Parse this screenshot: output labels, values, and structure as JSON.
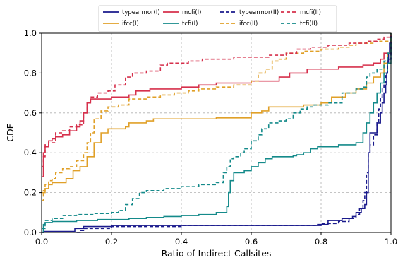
{
  "chart_data": {
    "type": "line",
    "title": "",
    "xlabel": "Ratio of Indirect Callsites",
    "ylabel": "CDF",
    "xlim": [
      0.0,
      1.0
    ],
    "ylim": [
      0.0,
      1.0
    ],
    "x_ticks": [
      "0.0",
      "0.2",
      "0.4",
      "0.6",
      "0.8",
      "1.0"
    ],
    "y_ticks": [
      "0.0",
      "0.2",
      "0.4",
      "0.6",
      "0.8",
      "1.0"
    ],
    "grid": true,
    "legend_position": "top-center",
    "series": [
      {
        "name": "typearmor(I)",
        "color": "#1a1a8c",
        "dashed": false,
        "step": true,
        "points": [
          [
            0,
            0
          ],
          [
            0.005,
            0.005
          ],
          [
            0.09,
            0.005
          ],
          [
            0.095,
            0.02
          ],
          [
            0.12,
            0.03
          ],
          [
            0.2,
            0.035
          ],
          [
            0.4,
            0.035
          ],
          [
            0.6,
            0.035
          ],
          [
            0.79,
            0.04
          ],
          [
            0.82,
            0.06
          ],
          [
            0.86,
            0.07
          ],
          [
            0.89,
            0.08
          ],
          [
            0.9,
            0.1
          ],
          [
            0.915,
            0.12
          ],
          [
            0.925,
            0.14
          ],
          [
            0.93,
            0.2
          ],
          [
            0.935,
            0.4
          ],
          [
            0.94,
            0.5
          ],
          [
            0.96,
            0.55
          ],
          [
            0.97,
            0.6
          ],
          [
            0.975,
            0.65
          ],
          [
            0.98,
            0.7
          ],
          [
            0.985,
            0.74
          ],
          [
            0.988,
            0.8
          ],
          [
            0.99,
            0.85
          ],
          [
            0.993,
            0.9
          ],
          [
            0.996,
            0.95
          ],
          [
            1.0,
            1.0
          ]
        ]
      },
      {
        "name": "ifcc(I)",
        "color": "#e0a028",
        "dashed": false,
        "step": true,
        "points": [
          [
            0,
            0.2
          ],
          [
            0.005,
            0.2
          ],
          [
            0.01,
            0.22
          ],
          [
            0.02,
            0.24
          ],
          [
            0.03,
            0.25
          ],
          [
            0.06,
            0.25
          ],
          [
            0.07,
            0.27
          ],
          [
            0.09,
            0.31
          ],
          [
            0.11,
            0.33
          ],
          [
            0.13,
            0.38
          ],
          [
            0.15,
            0.45
          ],
          [
            0.17,
            0.5
          ],
          [
            0.19,
            0.52
          ],
          [
            0.24,
            0.53
          ],
          [
            0.25,
            0.55
          ],
          [
            0.3,
            0.56
          ],
          [
            0.32,
            0.57
          ],
          [
            0.5,
            0.575
          ],
          [
            0.6,
            0.6
          ],
          [
            0.63,
            0.61
          ],
          [
            0.65,
            0.63
          ],
          [
            0.75,
            0.64
          ],
          [
            0.8,
            0.65
          ],
          [
            0.83,
            0.68
          ],
          [
            0.87,
            0.7
          ],
          [
            0.9,
            0.72
          ],
          [
            0.93,
            0.75
          ],
          [
            0.95,
            0.78
          ],
          [
            0.97,
            0.8
          ],
          [
            0.98,
            0.85
          ],
          [
            0.99,
            0.9
          ],
          [
            1.0,
            1.0
          ]
        ]
      },
      {
        "name": "mcfi(I)",
        "color": "#d6304c",
        "dashed": false,
        "step": true,
        "points": [
          [
            0,
            0.28
          ],
          [
            0.005,
            0.4
          ],
          [
            0.01,
            0.43
          ],
          [
            0.02,
            0.46
          ],
          [
            0.03,
            0.47
          ],
          [
            0.04,
            0.48
          ],
          [
            0.06,
            0.49
          ],
          [
            0.08,
            0.51
          ],
          [
            0.1,
            0.53
          ],
          [
            0.11,
            0.56
          ],
          [
            0.12,
            0.6
          ],
          [
            0.13,
            0.65
          ],
          [
            0.14,
            0.67
          ],
          [
            0.2,
            0.68
          ],
          [
            0.25,
            0.69
          ],
          [
            0.27,
            0.71
          ],
          [
            0.31,
            0.72
          ],
          [
            0.4,
            0.73
          ],
          [
            0.45,
            0.74
          ],
          [
            0.5,
            0.75
          ],
          [
            0.6,
            0.76
          ],
          [
            0.68,
            0.78
          ],
          [
            0.71,
            0.8
          ],
          [
            0.76,
            0.82
          ],
          [
            0.85,
            0.83
          ],
          [
            0.92,
            0.84
          ],
          [
            0.95,
            0.85
          ],
          [
            0.97,
            0.87
          ],
          [
            0.98,
            0.9
          ],
          [
            1.0,
            0.99
          ]
        ]
      },
      {
        "name": "tcfi(I)",
        "color": "#148a8a",
        "dashed": false,
        "step": true,
        "points": [
          [
            0,
            0
          ],
          [
            0.005,
            0.04
          ],
          [
            0.01,
            0.05
          ],
          [
            0.03,
            0.055
          ],
          [
            0.1,
            0.06
          ],
          [
            0.16,
            0.065
          ],
          [
            0.25,
            0.07
          ],
          [
            0.3,
            0.075
          ],
          [
            0.35,
            0.08
          ],
          [
            0.4,
            0.085
          ],
          [
            0.45,
            0.09
          ],
          [
            0.5,
            0.1
          ],
          [
            0.53,
            0.13
          ],
          [
            0.535,
            0.2
          ],
          [
            0.54,
            0.26
          ],
          [
            0.55,
            0.3
          ],
          [
            0.58,
            0.31
          ],
          [
            0.6,
            0.33
          ],
          [
            0.62,
            0.35
          ],
          [
            0.64,
            0.37
          ],
          [
            0.66,
            0.38
          ],
          [
            0.72,
            0.385
          ],
          [
            0.73,
            0.39
          ],
          [
            0.75,
            0.4
          ],
          [
            0.77,
            0.42
          ],
          [
            0.79,
            0.43
          ],
          [
            0.85,
            0.44
          ],
          [
            0.9,
            0.45
          ],
          [
            0.92,
            0.5
          ],
          [
            0.93,
            0.55
          ],
          [
            0.94,
            0.6
          ],
          [
            0.95,
            0.65
          ],
          [
            0.96,
            0.7
          ],
          [
            0.97,
            0.75
          ],
          [
            0.98,
            0.8
          ],
          [
            0.99,
            0.85
          ],
          [
            1.0,
            0.98
          ]
        ]
      },
      {
        "name": "typearmor(II)",
        "color": "#1a1a8c",
        "dashed": true,
        "step": true,
        "points": [
          [
            0.1,
            0
          ],
          [
            0.11,
            0.01
          ],
          [
            0.12,
            0.02
          ],
          [
            0.2,
            0.03
          ],
          [
            0.4,
            0.035
          ],
          [
            0.7,
            0.035
          ],
          [
            0.8,
            0.045
          ],
          [
            0.85,
            0.055
          ],
          [
            0.88,
            0.07
          ],
          [
            0.9,
            0.09
          ],
          [
            0.91,
            0.12
          ],
          [
            0.92,
            0.16
          ],
          [
            0.925,
            0.2
          ],
          [
            0.93,
            0.3
          ],
          [
            0.935,
            0.4
          ],
          [
            0.94,
            0.44
          ],
          [
            0.95,
            0.49
          ],
          [
            0.96,
            0.55
          ],
          [
            0.965,
            0.62
          ],
          [
            0.97,
            0.68
          ],
          [
            0.975,
            0.72
          ],
          [
            0.98,
            0.75
          ],
          [
            0.985,
            0.8
          ],
          [
            0.99,
            0.87
          ],
          [
            1.0,
            1.0
          ]
        ]
      },
      {
        "name": "ifcc(II)",
        "color": "#e0a028",
        "dashed": true,
        "step": true,
        "points": [
          [
            0,
            0.16
          ],
          [
            0.005,
            0.21
          ],
          [
            0.01,
            0.24
          ],
          [
            0.02,
            0.26
          ],
          [
            0.03,
            0.27
          ],
          [
            0.04,
            0.3
          ],
          [
            0.06,
            0.32
          ],
          [
            0.08,
            0.33
          ],
          [
            0.1,
            0.36
          ],
          [
            0.12,
            0.4
          ],
          [
            0.13,
            0.45
          ],
          [
            0.14,
            0.5
          ],
          [
            0.15,
            0.57
          ],
          [
            0.17,
            0.61
          ],
          [
            0.19,
            0.63
          ],
          [
            0.22,
            0.64
          ],
          [
            0.25,
            0.67
          ],
          [
            0.3,
            0.68
          ],
          [
            0.34,
            0.69
          ],
          [
            0.38,
            0.7
          ],
          [
            0.42,
            0.71
          ],
          [
            0.45,
            0.72
          ],
          [
            0.5,
            0.73
          ],
          [
            0.55,
            0.74
          ],
          [
            0.6,
            0.76
          ],
          [
            0.62,
            0.8
          ],
          [
            0.64,
            0.82
          ],
          [
            0.66,
            0.86
          ],
          [
            0.68,
            0.87
          ],
          [
            0.7,
            0.9
          ],
          [
            0.75,
            0.91
          ],
          [
            0.8,
            0.92
          ],
          [
            0.85,
            0.93
          ],
          [
            0.88,
            0.94
          ],
          [
            0.9,
            0.95
          ],
          [
            0.95,
            0.96
          ],
          [
            1.0,
            1.0
          ]
        ]
      },
      {
        "name": "mcfi(II)",
        "color": "#d6304c",
        "dashed": true,
        "step": true,
        "points": [
          [
            0,
            0.33
          ],
          [
            0.005,
            0.38
          ],
          [
            0.01,
            0.44
          ],
          [
            0.02,
            0.45
          ],
          [
            0.04,
            0.5
          ],
          [
            0.06,
            0.51
          ],
          [
            0.08,
            0.53
          ],
          [
            0.1,
            0.54
          ],
          [
            0.12,
            0.6
          ],
          [
            0.13,
            0.65
          ],
          [
            0.14,
            0.68
          ],
          [
            0.16,
            0.7
          ],
          [
            0.19,
            0.71
          ],
          [
            0.21,
            0.74
          ],
          [
            0.24,
            0.78
          ],
          [
            0.26,
            0.8
          ],
          [
            0.3,
            0.81
          ],
          [
            0.34,
            0.84
          ],
          [
            0.36,
            0.85
          ],
          [
            0.42,
            0.86
          ],
          [
            0.46,
            0.87
          ],
          [
            0.55,
            0.88
          ],
          [
            0.65,
            0.89
          ],
          [
            0.7,
            0.9
          ],
          [
            0.73,
            0.92
          ],
          [
            0.77,
            0.93
          ],
          [
            0.82,
            0.94
          ],
          [
            0.88,
            0.95
          ],
          [
            0.93,
            0.96
          ],
          [
            0.96,
            0.97
          ],
          [
            0.98,
            0.98
          ],
          [
            1.0,
            1.0
          ]
        ]
      },
      {
        "name": "tcfi(II)",
        "color": "#148a8a",
        "dashed": true,
        "step": true,
        "points": [
          [
            0,
            0.02
          ],
          [
            0.01,
            0.06
          ],
          [
            0.03,
            0.07
          ],
          [
            0.06,
            0.085
          ],
          [
            0.1,
            0.09
          ],
          [
            0.15,
            0.095
          ],
          [
            0.2,
            0.1
          ],
          [
            0.22,
            0.11
          ],
          [
            0.24,
            0.14
          ],
          [
            0.26,
            0.17
          ],
          [
            0.28,
            0.2
          ],
          [
            0.3,
            0.21
          ],
          [
            0.35,
            0.22
          ],
          [
            0.4,
            0.23
          ],
          [
            0.45,
            0.24
          ],
          [
            0.5,
            0.25
          ],
          [
            0.52,
            0.3
          ],
          [
            0.53,
            0.33
          ],
          [
            0.54,
            0.37
          ],
          [
            0.55,
            0.38
          ],
          [
            0.57,
            0.4
          ],
          [
            0.58,
            0.42
          ],
          [
            0.6,
            0.46
          ],
          [
            0.62,
            0.49
          ],
          [
            0.63,
            0.52
          ],
          [
            0.65,
            0.55
          ],
          [
            0.68,
            0.56
          ],
          [
            0.7,
            0.57
          ],
          [
            0.72,
            0.6
          ],
          [
            0.74,
            0.62
          ],
          [
            0.76,
            0.63
          ],
          [
            0.78,
            0.64
          ],
          [
            0.82,
            0.65
          ],
          [
            0.86,
            0.7
          ],
          [
            0.9,
            0.72
          ],
          [
            0.92,
            0.73
          ],
          [
            0.93,
            0.78
          ],
          [
            0.94,
            0.8
          ],
          [
            0.96,
            0.82
          ],
          [
            0.98,
            0.86
          ],
          [
            0.99,
            0.9
          ],
          [
            1.0,
            1.0
          ]
        ]
      }
    ]
  }
}
